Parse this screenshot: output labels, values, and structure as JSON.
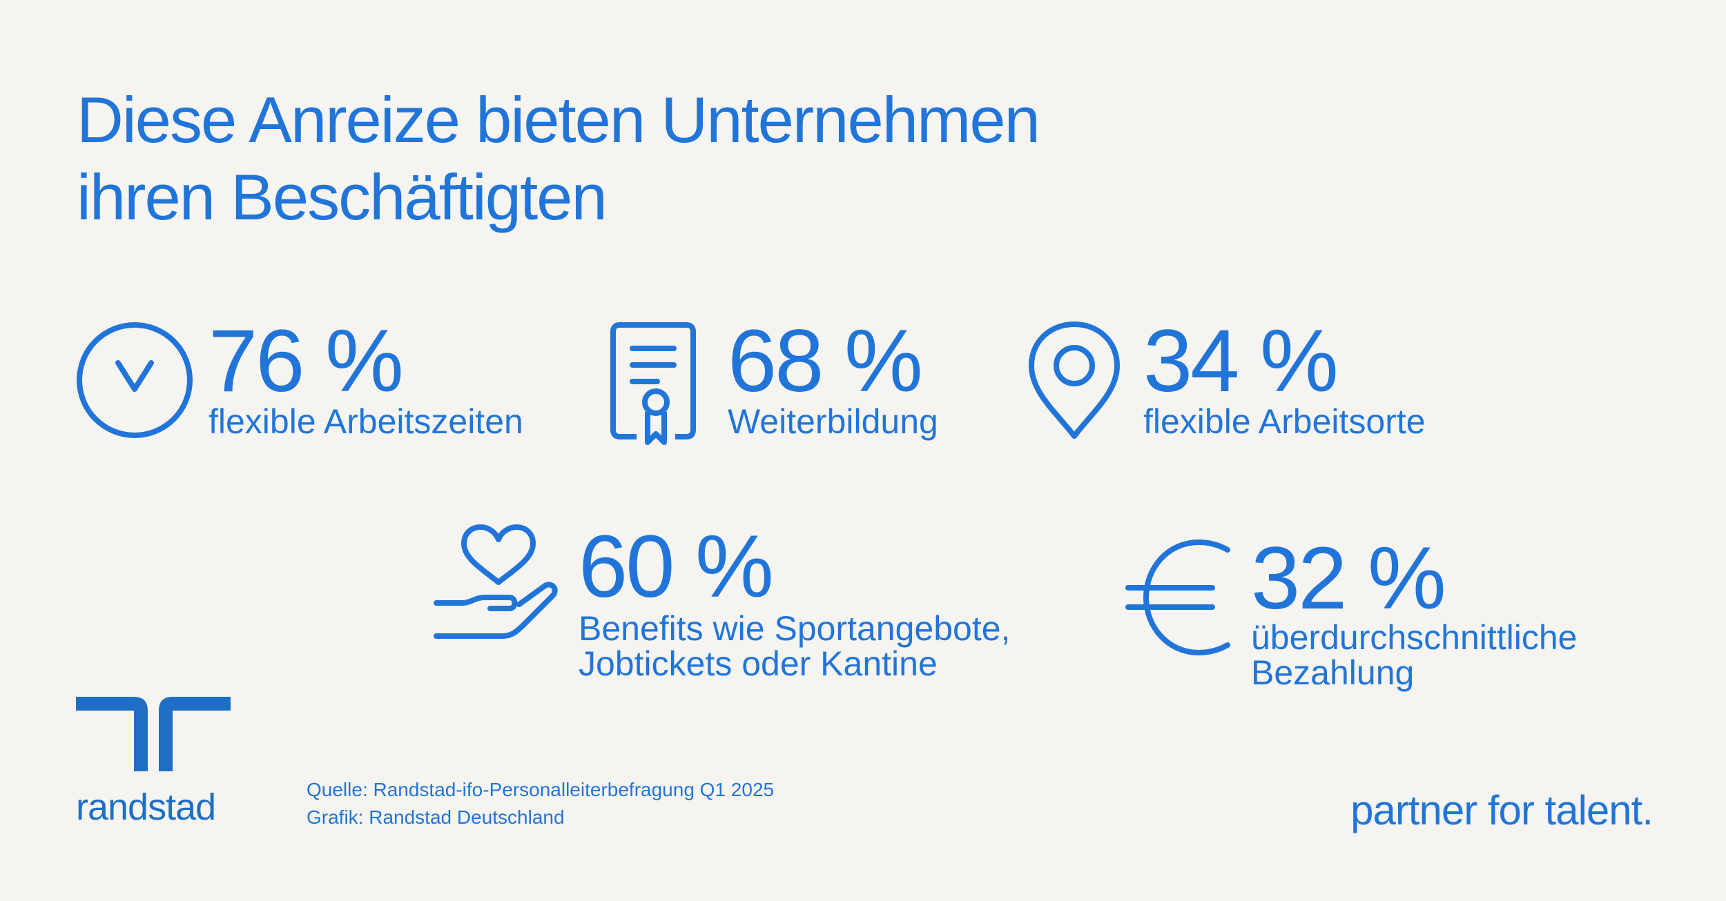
{
  "title": {
    "line1": "Diese Anreize bieten Unternehmen",
    "line2": "ihren Beschäftigten"
  },
  "stats": [
    {
      "value": "76 %",
      "label_lines": [
        "flexible Arbeitszeiten"
      ],
      "icon": "clock-icon"
    },
    {
      "value": "68 %",
      "label_lines": [
        "Weiterbildung"
      ],
      "icon": "certificate-icon"
    },
    {
      "value": "34 %",
      "label_lines": [
        "flexible Arbeitsorte"
      ],
      "icon": "location-pin-icon"
    },
    {
      "value": "60 %",
      "label_lines": [
        "Benefits wie Sportangebote,",
        "Jobtickets oder Kantine"
      ],
      "icon": "heart-hand-icon"
    },
    {
      "value": "32 %",
      "label_lines": [
        "überdurchschnittliche",
        "Bezahlung"
      ],
      "icon": "euro-icon"
    }
  ],
  "source": {
    "line1": "Quelle: Randstad-ifo-Personalleiterbefragung Q1 2025",
    "line2": "Grafik: Randstad Deutschland"
  },
  "logo": {
    "text": "randstad"
  },
  "tagline": "partner for talent.",
  "colors": {
    "accent": "#2175d9",
    "logo": "#1f6fc4",
    "background": "#f5f4f1"
  }
}
